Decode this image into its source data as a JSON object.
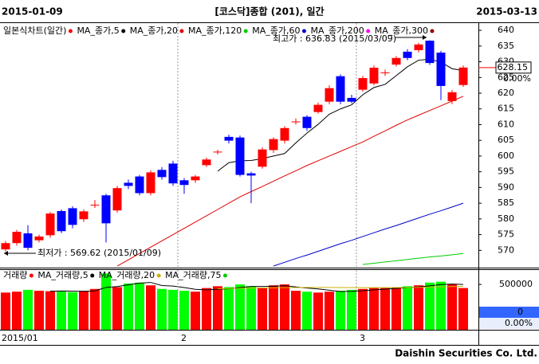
{
  "header": {
    "start_date": "2015-01-09",
    "title": "[코스닥]종합 (201), 일간",
    "end_date": "2015-03-13"
  },
  "footer": "Daishin Securities Co. Ltd.",
  "chart_data": [
    {
      "type": "candlestick",
      "legend_title": "일본식차트(일간)",
      "categories": [
        "2015/01",
        null,
        null,
        null,
        null,
        null,
        null,
        null,
        null,
        null,
        null,
        null,
        null,
        null,
        null,
        null,
        "2",
        null,
        null,
        null,
        null,
        null,
        null,
        null,
        null,
        null,
        null,
        null,
        null,
        null,
        null,
        null,
        "3",
        null,
        null,
        null,
        null,
        null,
        null,
        null,
        null,
        null
      ],
      "open": [
        570.3,
        572.3,
        575.4,
        573.2,
        574.8,
        582.5,
        583.4,
        579.9,
        584.5,
        587.5,
        582.7,
        591.5,
        593.5,
        588.2,
        595.6,
        597.6,
        592.3,
        592.3,
        597.1,
        601.4,
        606.1,
        605.9,
        594.5,
        596.6,
        601.9,
        604.9,
        611.0,
        612.5,
        614.0,
        617.3,
        625.4,
        618.5,
        621.1,
        623.1,
        626.6,
        629.1,
        633.2,
        633.7,
        636.7,
        632.9,
        617.5,
        622.6
      ],
      "high": [
        573.0,
        576.5,
        578.0,
        575.0,
        582.2,
        583.0,
        584.0,
        583.0,
        586.0,
        588.0,
        590.5,
        592.5,
        594.0,
        595.5,
        596.5,
        598.5,
        593.0,
        594.0,
        599.5,
        602.0,
        606.8,
        606.5,
        595.0,
        602.8,
        606.0,
        609.5,
        612.0,
        613.0,
        617.0,
        622.5,
        626.0,
        619.5,
        625.5,
        628.8,
        627.5,
        631.8,
        634.0,
        636.0,
        636.83,
        633.5,
        621.0,
        628.8
      ],
      "low": [
        569.62,
        571.5,
        570.0,
        572.5,
        574.0,
        575.5,
        577.0,
        579.0,
        583.5,
        572.5,
        582.0,
        589.5,
        587.5,
        587.5,
        592.5,
        590.5,
        588.0,
        591.5,
        596.5,
        600.5,
        604.0,
        593.5,
        585.0,
        596.0,
        601.0,
        604.0,
        610.0,
        608.0,
        613.5,
        616.5,
        616.5,
        616.8,
        620.5,
        622.5,
        625.5,
        628.5,
        630.5,
        633.0,
        629.0,
        617.8,
        616.5,
        622.0
      ],
      "close": [
        572.3,
        575.9,
        570.8,
        574.4,
        581.7,
        576.1,
        578.1,
        582.4,
        584.5,
        578.6,
        589.8,
        590.5,
        588.2,
        594.8,
        593.3,
        591.3,
        590.8,
        593.5,
        598.9,
        601.4,
        604.9,
        594.0,
        593.8,
        602.1,
        605.4,
        608.9,
        611.0,
        608.9,
        616.3,
        621.6,
        617.3,
        617.3,
        624.8,
        628.1,
        626.6,
        631.2,
        631.2,
        635.5,
        629.6,
        622.3,
        620.3,
        628.15
      ],
      "up_color": "#ff0000",
      "down_color": "#0000ff",
      "series": [
        {
          "name": "MA_종가,5",
          "color": "#000000",
          "values": [
            null,
            null,
            null,
            null,
            null,
            null,
            null,
            null,
            null,
            null,
            null,
            null,
            null,
            null,
            null,
            null,
            null,
            null,
            null,
            595.2,
            597.9,
            598.5,
            598.6,
            599.2,
            600.0,
            600.8,
            604.2,
            607.3,
            610.1,
            613.3,
            615.0,
            616.3,
            619.5,
            621.8,
            622.8,
            625.6,
            628.4,
            630.5,
            630.8,
            629.9,
            627.8,
            627.2
          ]
        },
        {
          "name": "MA_종가,20",
          "color": "#e00000",
          "values": [
            null,
            null,
            null,
            null,
            null,
            null,
            null,
            null,
            null,
            null,
            565,
            567,
            569,
            571,
            573,
            575,
            577,
            579,
            581,
            583,
            585,
            587,
            588.7,
            590.3,
            592,
            593.7,
            595.3,
            597,
            598.5,
            600,
            601.5,
            603,
            604.5,
            606.3,
            608,
            609.8,
            611.5,
            613,
            614.5,
            616,
            617.5,
            619
          ]
        },
        {
          "name": "MA_종가,120",
          "color": "#00cc00",
          "values": [
            null,
            null,
            null,
            null,
            null,
            null,
            null,
            null,
            null,
            null,
            null,
            null,
            null,
            null,
            null,
            null,
            null,
            null,
            null,
            null,
            null,
            null,
            null,
            null,
            null,
            null,
            null,
            null,
            null,
            null,
            null,
            null,
            565.5,
            565.9,
            566.3,
            566.7,
            567.1,
            567.5,
            567.9,
            568.2,
            568.6,
            569.0
          ]
        },
        {
          "name": "MA_종가,60",
          "color": "#0000cc",
          "values": [
            null,
            null,
            null,
            null,
            null,
            null,
            null,
            null,
            null,
            null,
            null,
            null,
            null,
            null,
            null,
            null,
            null,
            null,
            null,
            null,
            null,
            null,
            null,
            null,
            565.0,
            566.2,
            567.4,
            568.5,
            569.7,
            570.9,
            572.1,
            573.2,
            574.4,
            575.6,
            576.8,
            577.9,
            579.1,
            580.3,
            581.5,
            582.6,
            583.8,
            585.0
          ]
        },
        {
          "name": "MA_종가,200",
          "color": "#ff00ff",
          "values": [
            null,
            null,
            null,
            null,
            null,
            null,
            null,
            null,
            null,
            null,
            null,
            null,
            null,
            null,
            null,
            null,
            null,
            null,
            null,
            null,
            null,
            null,
            null,
            null,
            null,
            null,
            null,
            null,
            null,
            null,
            null,
            null,
            null,
            null,
            null,
            null,
            null,
            null,
            null,
            null,
            null,
            null
          ]
        },
        {
          "name": "MA_종가,300",
          "color": "#990000",
          "values": [
            null,
            null,
            null,
            null,
            null,
            null,
            null,
            null,
            null,
            null,
            null,
            null,
            null,
            null,
            null,
            null,
            null,
            null,
            null,
            null,
            null,
            null,
            null,
            null,
            null,
            null,
            null,
            null,
            null,
            null,
            null,
            null,
            null,
            null,
            null,
            null,
            null,
            null,
            null,
            null,
            null,
            null
          ]
        }
      ],
      "ylim": [
        564.5,
        642.3
      ],
      "yticks": [
        640,
        635,
        630,
        625,
        620,
        615,
        610,
        605,
        600,
        595,
        590,
        585,
        580,
        575,
        570
      ],
      "high_annotation": "최고가 : 636.83 (2015/03/09)",
      "high_color": "#ff0000",
      "low_annotation": "최저가 : 569.62 (2015/01/09)",
      "low_color": "#0000ff",
      "change": "0.00%"
    },
    {
      "type": "bar",
      "legend_title": "거래량",
      "values": [
        410000,
        420000,
        440000,
        430000,
        425000,
        420000,
        415000,
        430000,
        450000,
        620000,
        470000,
        510000,
        520000,
        490000,
        450000,
        440000,
        430000,
        420000,
        460000,
        480000,
        470000,
        500000,
        480000,
        460000,
        490000,
        500000,
        430000,
        420000,
        410000,
        420000,
        430000,
        440000,
        450000,
        460000,
        460000,
        470000,
        480000,
        490000,
        520000,
        530000,
        500000,
        460000
      ],
      "up_color": "#ff0000",
      "down_color": "#00ff00",
      "series": [
        {
          "name": "MA_거래량,5",
          "color": "#000000",
          "values": [
            null,
            null,
            null,
            null,
            425000,
            427000,
            426000,
            424000,
            428000,
            467000,
            477000,
            496000,
            514000,
            522000,
            488000,
            482000,
            466000,
            446000,
            440000,
            446000,
            452000,
            466000,
            478000,
            478000,
            480000,
            486000,
            472000,
            460000,
            450000,
            436000,
            422000,
            424000,
            430000,
            440000,
            448000,
            456000,
            464000,
            472000,
            484000,
            498000,
            504000,
            500000
          ]
        },
        {
          "name": "MA_거래량,20",
          "color": "#c8b400",
          "values": [
            null,
            null,
            null,
            null,
            null,
            null,
            null,
            null,
            null,
            null,
            null,
            null,
            null,
            null,
            null,
            null,
            null,
            null,
            null,
            452000,
            455000,
            458000,
            460000,
            461000,
            462000,
            464000,
            466000,
            467000,
            467000,
            467000,
            466000,
            465000,
            464000,
            464000,
            464000,
            465000,
            466000,
            468000,
            470000,
            473000,
            476000,
            478000
          ]
        },
        {
          "name": "MA_거래량,75",
          "color": "#00cc00",
          "values": [
            null,
            null,
            null,
            null,
            null,
            null,
            null,
            null,
            null,
            null,
            null,
            null,
            null,
            null,
            null,
            null,
            null,
            null,
            null,
            null,
            null,
            null,
            null,
            null,
            null,
            null,
            null,
            null,
            null,
            null,
            null,
            null,
            null,
            null,
            null,
            null,
            null,
            null,
            null,
            null,
            null,
            null
          ]
        }
      ],
      "ylim": [
        0,
        650000
      ],
      "yticks": [
        500000
      ],
      "box_value": 0,
      "box_change": "0.00%"
    }
  ]
}
